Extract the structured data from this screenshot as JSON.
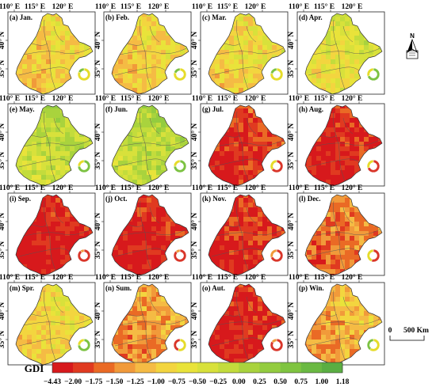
{
  "lon_labels": [
    "110° E",
    "115° E",
    "120° E"
  ],
  "lat_labels": [
    "40° N",
    "35° N"
  ],
  "panels": [
    {
      "id": "a",
      "label": "(a) Jan.",
      "level": 0.4,
      "ring": [
        0.82,
        0.18
      ],
      "ring_colors": [
        "#e6dc2a",
        "#7cc242"
      ]
    },
    {
      "id": "b",
      "label": "(b) Feb.",
      "level": 0.4,
      "ring": [
        0.8,
        0.2
      ],
      "ring_colors": [
        "#e6dc2a",
        "#7cc242"
      ]
    },
    {
      "id": "c",
      "label": "(c) Mar.",
      "level": 0.42,
      "ring": [
        0.78,
        0.22
      ],
      "ring_colors": [
        "#e6dc2a",
        "#7cc242"
      ]
    },
    {
      "id": "d",
      "label": "(d) Apr.",
      "level": 0.5,
      "ring": [
        0.7,
        0.3
      ],
      "ring_colors": [
        "#7cc242",
        "#e6dc2a"
      ]
    },
    {
      "id": "e",
      "label": "(e) May.",
      "level": 0.6,
      "ring": [
        0.75,
        0.25
      ],
      "ring_colors": [
        "#7cc242",
        "#e6dc2a"
      ]
    },
    {
      "id": "f",
      "label": "(f) Jun.",
      "level": 0.62,
      "ring": [
        0.75,
        0.25
      ],
      "ring_colors": [
        "#7cc242",
        "#e6dc2a"
      ]
    },
    {
      "id": "g",
      "label": "(g) Jul.",
      "level": 0.08,
      "ring": [
        0.65,
        0.35
      ],
      "ring_colors": [
        "#d9362a",
        "#e6dc2a"
      ]
    },
    {
      "id": "h",
      "label": "(h) Aug.",
      "level": 0.06,
      "ring": [
        0.7,
        0.3
      ],
      "ring_colors": [
        "#d9362a",
        "#e6dc2a"
      ]
    },
    {
      "id": "i",
      "label": "(i) Sep.",
      "level": 0.03,
      "ring": [
        0.9,
        0.1
      ],
      "ring_colors": [
        "#d9362a",
        "#f19a3a"
      ]
    },
    {
      "id": "j",
      "label": "(j) Oct.",
      "level": 0.04,
      "ring": [
        0.88,
        0.12
      ],
      "ring_colors": [
        "#d9362a",
        "#f19a3a"
      ]
    },
    {
      "id": "k",
      "label": "(k) Nov.",
      "level": 0.08,
      "ring": [
        0.7,
        0.3
      ],
      "ring_colors": [
        "#d9362a",
        "#f19a3a"
      ]
    },
    {
      "id": "l",
      "label": "(l) Dec.",
      "level": 0.2,
      "ring": [
        0.55,
        0.45
      ],
      "ring_colors": [
        "#d9362a",
        "#e6dc2a"
      ]
    },
    {
      "id": "m",
      "label": "(m) Spr.",
      "level": 0.42,
      "ring": [
        0.75,
        0.25
      ],
      "ring_colors": [
        "#7cc242",
        "#e6dc2a"
      ]
    },
    {
      "id": "n",
      "label": "(n) Sum.",
      "level": 0.26,
      "ring": [
        0.55,
        0.45
      ],
      "ring_colors": [
        "#e6dc2a",
        "#d9362a"
      ]
    },
    {
      "id": "o",
      "label": "(o) Aut.",
      "level": 0.05,
      "ring": [
        0.85,
        0.15
      ],
      "ring_colors": [
        "#d9362a",
        "#f19a3a"
      ]
    },
    {
      "id": "p",
      "label": "(p) Win.",
      "level": 0.3,
      "ring": [
        0.6,
        0.4
      ],
      "ring_colors": [
        "#e6dc2a",
        "#7cc242"
      ]
    }
  ],
  "colorbar": {
    "title": "GDI",
    "ticks": [
      "−4.43",
      "−2.00",
      "−1.75",
      "−1.50",
      "−1.25",
      "−1.00",
      "−0.75",
      "−0.50",
      "−0.25",
      "0.00",
      "0.25",
      "0.50",
      "0.75",
      "1.00",
      "1.18"
    ],
    "colors": [
      "#d7191c",
      "#e03a20",
      "#ea6a25",
      "#f19a3a",
      "#f5bb44",
      "#f3d53f",
      "#e9e33a",
      "#d8e13b",
      "#c3dc3c",
      "#a9d33d",
      "#93cc3f",
      "#7fc440",
      "#6ab942",
      "#5aae42"
    ]
  },
  "scale_bar": {
    "left": "0",
    "right": "500 Km"
  },
  "north_arrow": {
    "letter": "N",
    "icon": "north-arrow-icon"
  }
}
